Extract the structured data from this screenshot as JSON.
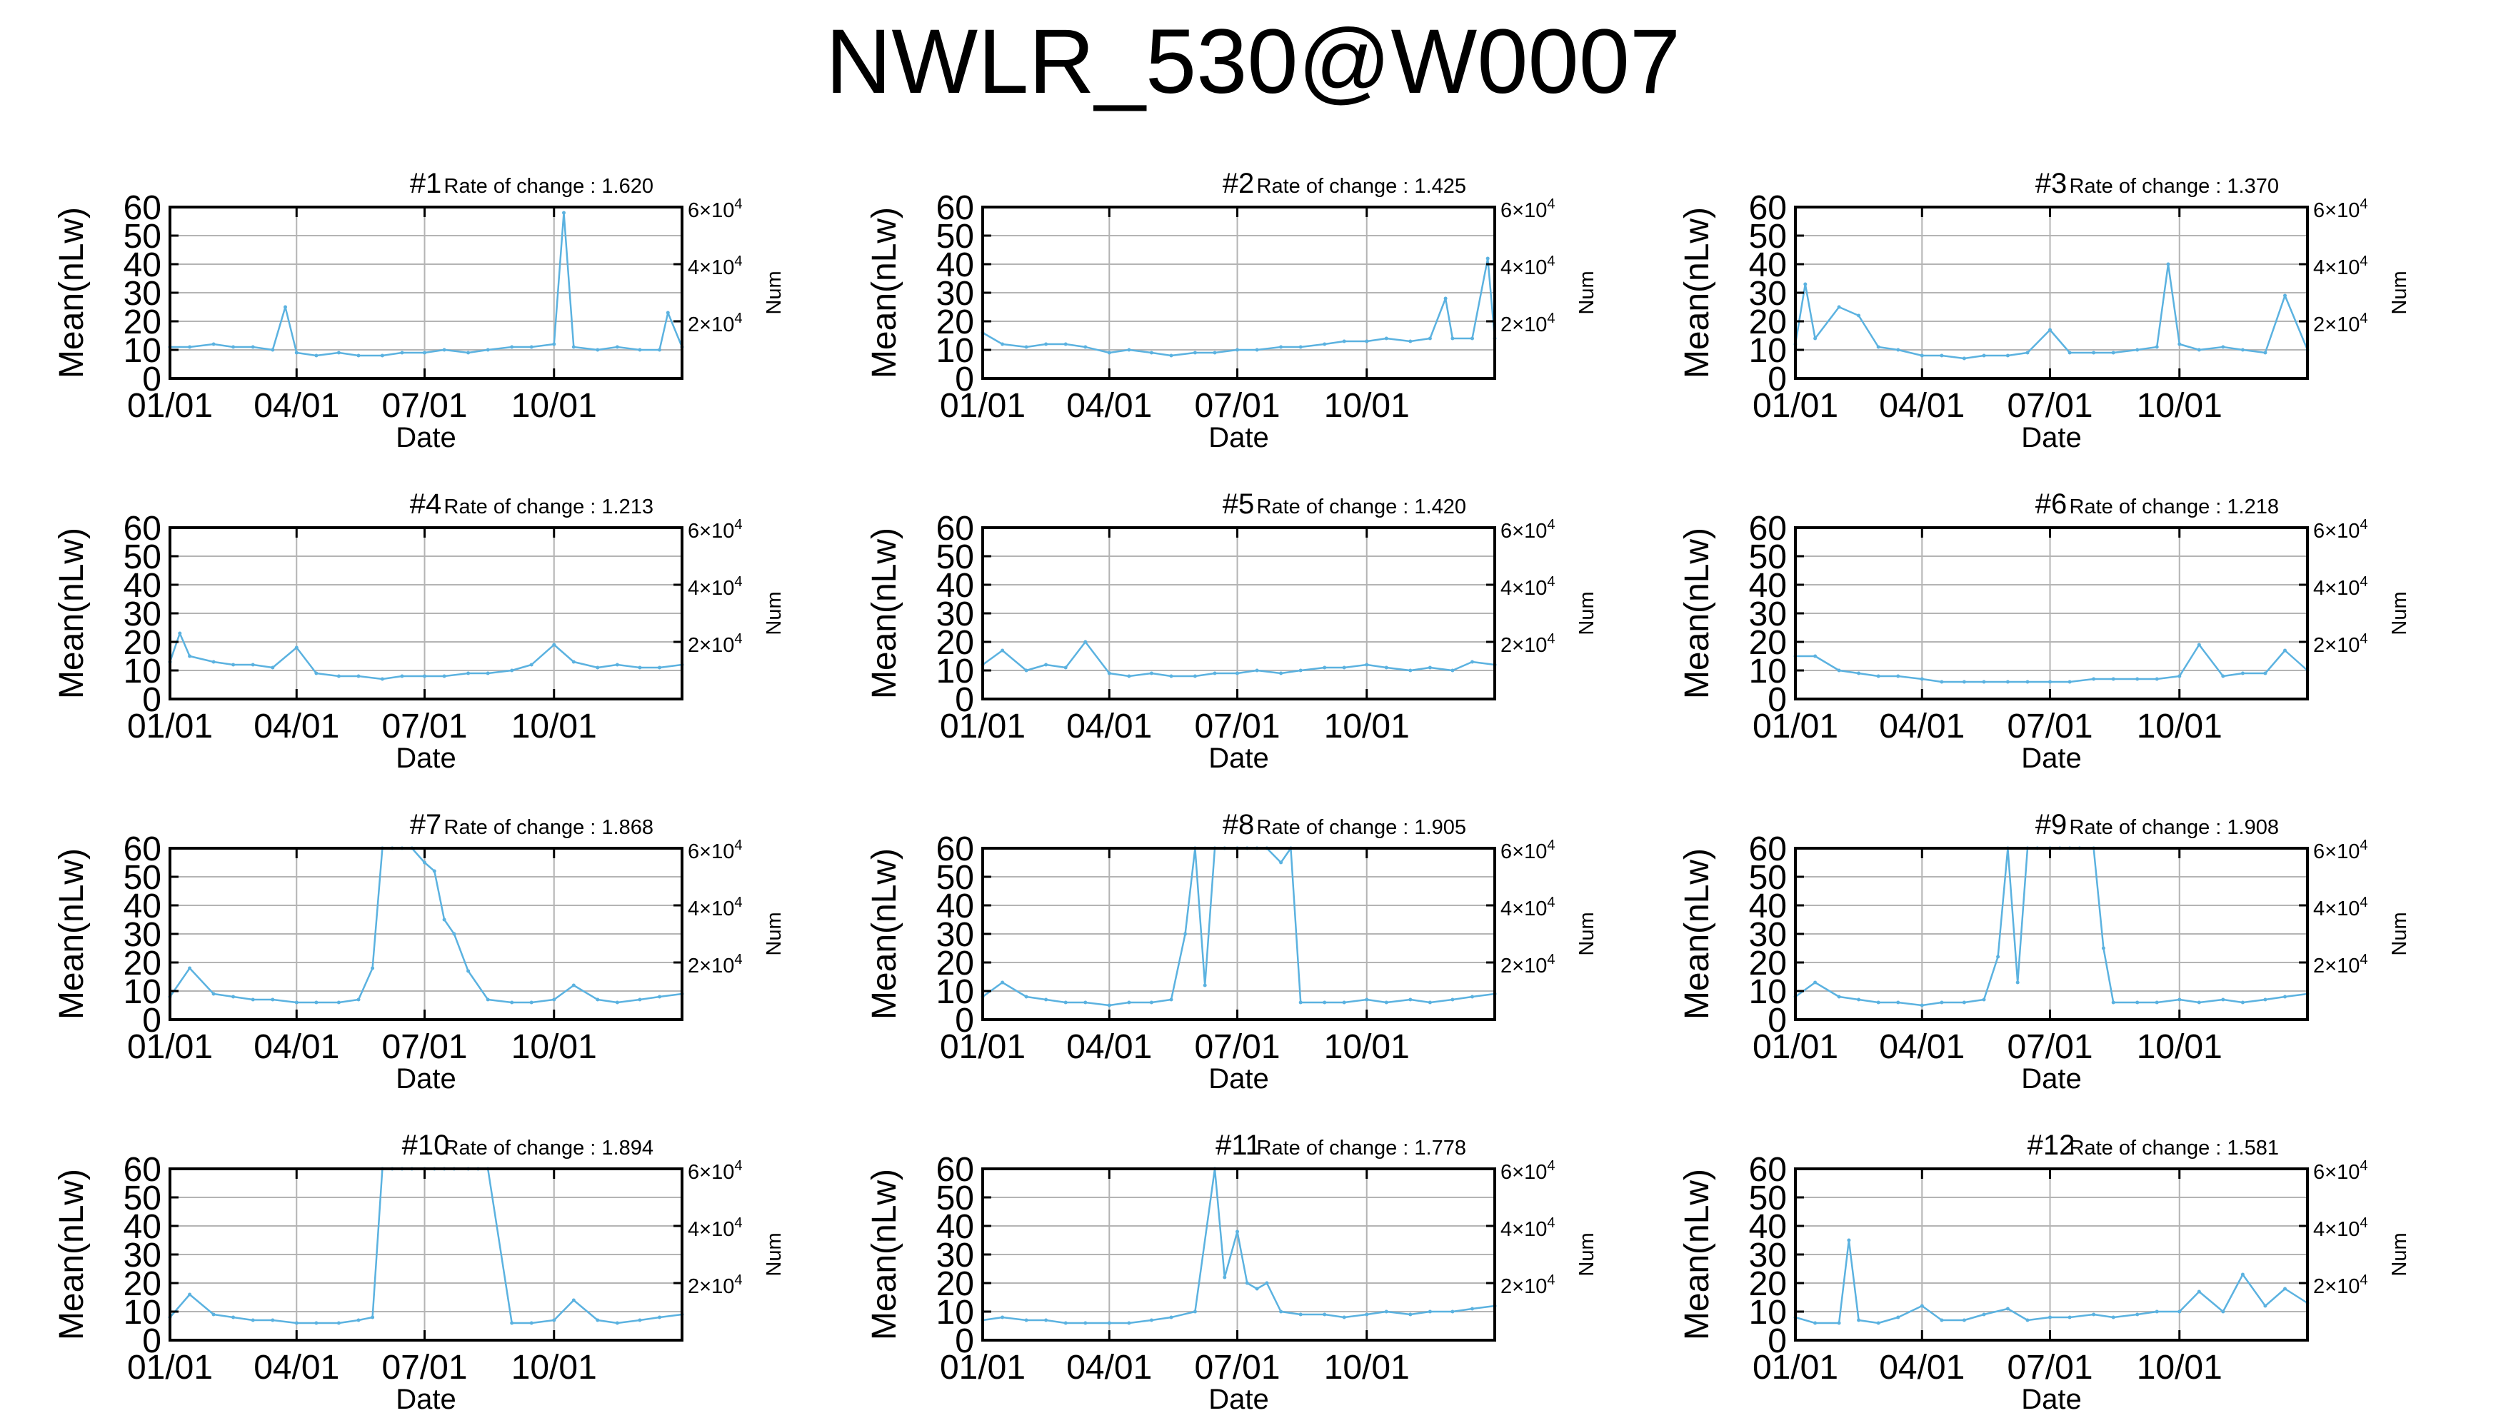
{
  "figure": {
    "title": "NWLR_530@W0007",
    "x_ticks": [
      "01/01",
      "04/01",
      "07/01",
      "10/01"
    ],
    "xlabel": "Date",
    "ylabel": "Mean(nLw)",
    "y2label": "Num",
    "y_ticks": [
      "0",
      "10",
      "20",
      "30",
      "40",
      "50",
      "60"
    ],
    "y2_ticks": [
      {
        "value": 20000,
        "mantissa": "2×10",
        "exp": "4"
      },
      {
        "value": 40000,
        "mantissa": "4×10",
        "exp": "4"
      },
      {
        "value": 60000,
        "mantissa": "6×10",
        "exp": "4"
      }
    ],
    "rate_prefix": "Rate of change : ",
    "line_color": "#5bb2e0",
    "grid_color": "#b4b4b4"
  },
  "chart_data": [
    {
      "type": "line",
      "title": "#1",
      "rate": "1.620",
      "xlim": [
        "01/01",
        "12/31"
      ],
      "ylim": [
        0,
        60
      ],
      "y2lim": [
        0,
        60000
      ],
      "grid": true,
      "series": [
        {
          "x": [
            "01/01",
            "01/15",
            "02/01",
            "02/15",
            "03/01",
            "03/15",
            "03/24",
            "04/01",
            "04/15",
            "05/01",
            "05/15",
            "06/01",
            "06/15",
            "07/01",
            "07/15",
            "08/01",
            "08/15",
            "09/01",
            "09/15",
            "10/01",
            "10/08",
            "10/15",
            "11/01",
            "11/15",
            "12/01",
            "12/15",
            "12/21",
            "12/31"
          ],
          "y": [
            11,
            11,
            12,
            11,
            11,
            10,
            25,
            9,
            8,
            9,
            8,
            8,
            9,
            9,
            10,
            9,
            10,
            11,
            11,
            12,
            58,
            11,
            10,
            11,
            10,
            10,
            23,
            11
          ]
        }
      ]
    },
    {
      "type": "line",
      "title": "#2",
      "rate": "1.425",
      "xlim": [
        "01/01",
        "12/31"
      ],
      "ylim": [
        0,
        60
      ],
      "y2lim": [
        0,
        60000
      ],
      "grid": true,
      "series": [
        {
          "x": [
            "01/01",
            "01/15",
            "02/01",
            "02/15",
            "03/01",
            "03/15",
            "04/01",
            "04/15",
            "05/01",
            "05/15",
            "06/01",
            "06/15",
            "07/01",
            "07/15",
            "08/01",
            "08/15",
            "09/01",
            "09/15",
            "10/01",
            "10/15",
            "11/01",
            "11/15",
            "11/26",
            "12/01",
            "12/15",
            "12/26",
            "12/31"
          ],
          "y": [
            16,
            12,
            11,
            12,
            12,
            11,
            9,
            10,
            9,
            8,
            9,
            9,
            10,
            10,
            11,
            11,
            12,
            13,
            13,
            14,
            13,
            14,
            28,
            14,
            14,
            42,
            14
          ]
        }
      ]
    },
    {
      "type": "line",
      "title": "#3",
      "rate": "1.370",
      "xlim": [
        "01/01",
        "12/31"
      ],
      "ylim": [
        0,
        60
      ],
      "y2lim": [
        0,
        60000
      ],
      "grid": true,
      "series": [
        {
          "x": [
            "01/01",
            "01/08",
            "01/15",
            "02/01",
            "02/15",
            "03/01",
            "03/15",
            "04/01",
            "04/15",
            "05/01",
            "05/15",
            "06/01",
            "06/15",
            "07/01",
            "07/15",
            "08/01",
            "08/15",
            "09/01",
            "09/15",
            "09/23",
            "10/01",
            "10/15",
            "11/01",
            "11/15",
            "12/01",
            "12/15",
            "12/31"
          ],
          "y": [
            12,
            33,
            14,
            25,
            22,
            11,
            10,
            8,
            8,
            7,
            8,
            8,
            9,
            17,
            9,
            9,
            9,
            10,
            11,
            40,
            12,
            10,
            11,
            10,
            9,
            29,
            10
          ]
        }
      ]
    },
    {
      "type": "line",
      "title": "#4",
      "rate": "1.213",
      "xlim": [
        "01/01",
        "12/31"
      ],
      "ylim": [
        0,
        60
      ],
      "y2lim": [
        0,
        60000
      ],
      "grid": true,
      "series": [
        {
          "x": [
            "01/01",
            "01/08",
            "01/15",
            "02/01",
            "02/15",
            "03/01",
            "03/15",
            "04/01",
            "04/15",
            "05/01",
            "05/15",
            "06/01",
            "06/15",
            "07/01",
            "07/15",
            "08/01",
            "08/15",
            "09/01",
            "09/15",
            "10/01",
            "10/15",
            "11/01",
            "11/15",
            "12/01",
            "12/15",
            "12/31"
          ],
          "y": [
            13,
            23,
            15,
            13,
            12,
            12,
            11,
            18,
            9,
            8,
            8,
            7,
            8,
            8,
            8,
            9,
            9,
            10,
            12,
            19,
            13,
            11,
            12,
            11,
            11,
            12
          ]
        }
      ]
    },
    {
      "type": "line",
      "title": "#5",
      "rate": "1.420",
      "xlim": [
        "01/01",
        "12/31"
      ],
      "ylim": [
        0,
        60
      ],
      "y2lim": [
        0,
        60000
      ],
      "grid": true,
      "series": [
        {
          "x": [
            "01/01",
            "01/15",
            "02/01",
            "02/15",
            "03/01",
            "03/15",
            "04/01",
            "04/15",
            "05/01",
            "05/15",
            "06/01",
            "06/15",
            "07/01",
            "07/15",
            "08/01",
            "08/15",
            "09/01",
            "09/15",
            "10/01",
            "10/15",
            "11/01",
            "11/15",
            "12/01",
            "12/15",
            "12/31"
          ],
          "y": [
            12,
            17,
            10,
            12,
            11,
            20,
            9,
            8,
            9,
            8,
            8,
            9,
            9,
            10,
            9,
            10,
            11,
            11,
            12,
            11,
            10,
            11,
            10,
            13,
            12
          ]
        }
      ]
    },
    {
      "type": "line",
      "title": "#6",
      "rate": "1.218",
      "xlim": [
        "01/01",
        "12/31"
      ],
      "ylim": [
        0,
        60
      ],
      "y2lim": [
        0,
        60000
      ],
      "grid": true,
      "series": [
        {
          "x": [
            "01/01",
            "01/15",
            "02/01",
            "02/15",
            "03/01",
            "03/15",
            "04/01",
            "04/15",
            "05/01",
            "05/15",
            "06/01",
            "06/15",
            "07/01",
            "07/15",
            "08/01",
            "08/15",
            "09/01",
            "09/15",
            "10/01",
            "10/15",
            "11/01",
            "11/15",
            "12/01",
            "12/15",
            "12/31"
          ],
          "y": [
            15,
            15,
            10,
            9,
            8,
            8,
            7,
            6,
            6,
            6,
            6,
            6,
            6,
            6,
            7,
            7,
            7,
            7,
            8,
            19,
            8,
            9,
            9,
            17,
            10
          ]
        }
      ]
    },
    {
      "type": "line",
      "title": "#7",
      "rate": "1.868",
      "xlim": [
        "01/01",
        "12/31"
      ],
      "ylim": [
        0,
        60
      ],
      "y2lim": [
        0,
        60000
      ],
      "grid": true,
      "series": [
        {
          "x": [
            "01/01",
            "01/15",
            "02/01",
            "02/15",
            "03/01",
            "03/15",
            "04/01",
            "04/15",
            "05/01",
            "05/15",
            "05/25",
            "06/01",
            "06/08",
            "06/15",
            "06/22",
            "07/01",
            "07/08",
            "07/15",
            "07/22",
            "08/01",
            "08/15",
            "09/01",
            "09/15",
            "10/01",
            "10/15",
            "11/01",
            "11/15",
            "12/01",
            "12/15",
            "12/31"
          ],
          "y": [
            8,
            18,
            9,
            8,
            7,
            7,
            6,
            6,
            6,
            7,
            18,
            60,
            60,
            60,
            60,
            55,
            52,
            35,
            30,
            17,
            7,
            6,
            6,
            7,
            12,
            7,
            6,
            7,
            8,
            9
          ]
        }
      ]
    },
    {
      "type": "line",
      "title": "#8",
      "rate": "1.905",
      "xlim": [
        "01/01",
        "12/31"
      ],
      "ylim": [
        0,
        60
      ],
      "y2lim": [
        0,
        60000
      ],
      "grid": true,
      "series": [
        {
          "x": [
            "01/01",
            "01/15",
            "02/01",
            "02/15",
            "03/01",
            "03/15",
            "04/01",
            "04/15",
            "05/01",
            "05/15",
            "05/25",
            "06/01",
            "06/08",
            "06/15",
            "06/22",
            "07/01",
            "07/08",
            "07/15",
            "07/22",
            "08/01",
            "08/08",
            "08/15",
            "09/01",
            "09/15",
            "10/01",
            "10/15",
            "11/01",
            "11/15",
            "12/01",
            "12/15",
            "12/31"
          ],
          "y": [
            8,
            13,
            8,
            7,
            6,
            6,
            5,
            6,
            6,
            7,
            30,
            60,
            12,
            60,
            60,
            60,
            60,
            60,
            60,
            55,
            60,
            6,
            6,
            6,
            7,
            6,
            7,
            6,
            7,
            8,
            9
          ]
        }
      ]
    },
    {
      "type": "line",
      "title": "#9",
      "rate": "1.908",
      "xlim": [
        "01/01",
        "12/31"
      ],
      "ylim": [
        0,
        60
      ],
      "y2lim": [
        0,
        60000
      ],
      "grid": true,
      "series": [
        {
          "x": [
            "01/01",
            "01/15",
            "02/01",
            "02/15",
            "03/01",
            "03/15",
            "04/01",
            "04/15",
            "05/01",
            "05/15",
            "05/25",
            "06/01",
            "06/08",
            "06/15",
            "06/22",
            "07/01",
            "07/08",
            "07/15",
            "07/22",
            "08/01",
            "08/08",
            "08/15",
            "09/01",
            "09/15",
            "10/01",
            "10/15",
            "11/01",
            "11/15",
            "12/01",
            "12/15",
            "12/31"
          ],
          "y": [
            8,
            13,
            8,
            7,
            6,
            6,
            5,
            6,
            6,
            7,
            22,
            60,
            13,
            60,
            60,
            60,
            60,
            60,
            60,
            60,
            25,
            6,
            6,
            6,
            7,
            6,
            7,
            6,
            7,
            8,
            9
          ]
        }
      ]
    },
    {
      "type": "line",
      "title": "#10",
      "rate": "1.894",
      "xlim": [
        "01/01",
        "12/31"
      ],
      "ylim": [
        0,
        60
      ],
      "y2lim": [
        0,
        60000
      ],
      "grid": true,
      "series": [
        {
          "x": [
            "01/01",
            "01/15",
            "02/01",
            "02/15",
            "03/01",
            "03/15",
            "04/01",
            "04/15",
            "05/01",
            "05/15",
            "05/25",
            "06/01",
            "06/08",
            "06/15",
            "06/22",
            "07/01",
            "07/08",
            "07/15",
            "07/22",
            "08/01",
            "08/08",
            "08/15",
            "09/01",
            "09/15",
            "10/01",
            "10/15",
            "11/01",
            "11/15",
            "12/01",
            "12/15",
            "12/31"
          ],
          "y": [
            8,
            16,
            9,
            8,
            7,
            7,
            6,
            6,
            6,
            7,
            8,
            60,
            60,
            60,
            60,
            60,
            60,
            60,
            60,
            60,
            60,
            60,
            6,
            6,
            7,
            14,
            7,
            6,
            7,
            8,
            9
          ]
        }
      ]
    },
    {
      "type": "line",
      "title": "#11",
      "rate": "1.778",
      "xlim": [
        "01/01",
        "12/31"
      ],
      "ylim": [
        0,
        60
      ],
      "y2lim": [
        0,
        60000
      ],
      "grid": true,
      "series": [
        {
          "x": [
            "01/01",
            "01/15",
            "02/01",
            "02/15",
            "03/01",
            "03/15",
            "04/01",
            "04/15",
            "05/01",
            "05/15",
            "06/01",
            "06/15",
            "06/22",
            "07/01",
            "07/08",
            "07/15",
            "07/22",
            "08/01",
            "08/15",
            "09/01",
            "09/15",
            "10/01",
            "10/15",
            "11/01",
            "11/15",
            "12/01",
            "12/15",
            "12/31"
          ],
          "y": [
            7,
            8,
            7,
            7,
            6,
            6,
            6,
            6,
            7,
            8,
            10,
            60,
            22,
            38,
            20,
            18,
            20,
            10,
            9,
            9,
            8,
            9,
            10,
            9,
            10,
            10,
            11,
            12
          ]
        }
      ]
    },
    {
      "type": "line",
      "title": "#12",
      "rate": "1.581",
      "xlim": [
        "01/01",
        "12/31"
      ],
      "ylim": [
        0,
        60
      ],
      "y2lim": [
        0,
        60000
      ],
      "grid": true,
      "series": [
        {
          "x": [
            "01/01",
            "01/15",
            "02/01",
            "02/08",
            "02/15",
            "03/01",
            "03/15",
            "04/01",
            "04/15",
            "05/01",
            "05/15",
            "06/01",
            "06/15",
            "07/01",
            "07/15",
            "08/01",
            "08/15",
            "09/01",
            "09/15",
            "10/01",
            "10/15",
            "11/01",
            "11/15",
            "12/01",
            "12/15",
            "12/31"
          ],
          "y": [
            8,
            6,
            6,
            35,
            7,
            6,
            8,
            12,
            7,
            7,
            9,
            11,
            7,
            8,
            8,
            9,
            8,
            9,
            10,
            10,
            17,
            10,
            23,
            12,
            18,
            13
          ]
        }
      ]
    }
  ]
}
